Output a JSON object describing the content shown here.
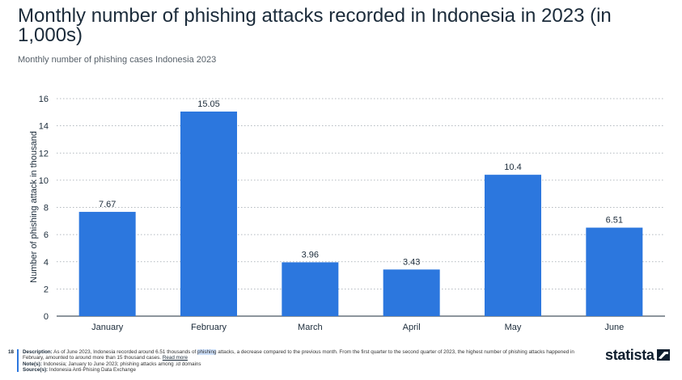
{
  "page_title": "Monthly number of phishing attacks recorded in Indonesia in 2023 (in 1,000s)",
  "subtitle": "Monthly number of phishing cases Indonesia 2023",
  "chart_data": {
    "type": "bar",
    "categories": [
      "January",
      "February",
      "March",
      "April",
      "May",
      "June"
    ],
    "values": [
      7.67,
      15.05,
      3.96,
      3.43,
      10.4,
      6.51
    ],
    "value_labels": [
      "7.67",
      "15.05",
      "3.96",
      "3.43",
      "10.4",
      "6.51"
    ],
    "ylabel": "Number of phishing attack in thousand",
    "xlabel": "",
    "ylim": [
      0,
      16
    ],
    "yticks": [
      0,
      2,
      4,
      6,
      8,
      10,
      12,
      14,
      16
    ],
    "grid": true,
    "bar_color": "#2c77de",
    "grid_color": "#9aa3ab"
  },
  "footer": {
    "page_number": "18",
    "description_label": "Description:",
    "description_pre": "As of June 2023, Indonesia recorded around 6.51 thousands of ",
    "description_highlight": "phishing",
    "description_post": " attacks, a decrease compared to the previous month. From the first quarter to the second quarter of 2023, the highest number of phishing attacks happened in February, amounted to around more than 15 thousand cases.",
    "read_more": "Read more",
    "notes_label": "Note(s):",
    "notes": "Indonesia; January to June 2023; phishing attacks among .id domains",
    "source_label": "Source(s):",
    "source": "Indonesia Anti-Phising Data Exchange",
    "accent_color": "#2c77de"
  },
  "logo": {
    "text": "statista",
    "icon": "statista-logo-icon"
  }
}
